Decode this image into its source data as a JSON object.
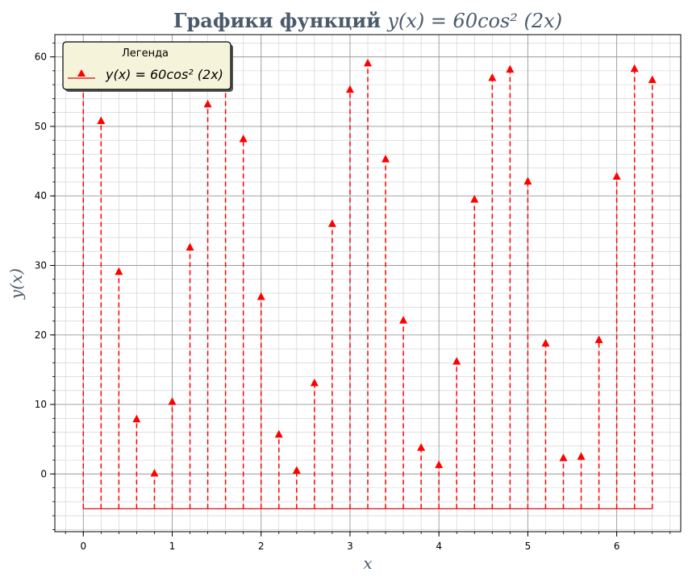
{
  "chart_data": {
    "type": "stem",
    "title_plain": "Графики функций ",
    "title_math": "y(x) = 60cos² (2x)",
    "xlabel": "x",
    "ylabel": "y(x)",
    "xlim": [
      -0.32,
      6.72
    ],
    "ylim": [
      -8.3,
      63.2
    ],
    "baseline": -5,
    "x_ticks": [
      0,
      1,
      2,
      3,
      4,
      5,
      6
    ],
    "y_ticks": [
      0,
      10,
      20,
      30,
      40,
      50,
      60
    ],
    "grid": true,
    "legend_position": "top-left",
    "legend_title": "Легенда",
    "series": [
      {
        "name": "y(x) = 60cos² (2x)",
        "color": "#ff0000",
        "marker": "triangle-up",
        "line_style": "dashed",
        "x": [
          0,
          0.2,
          0.4,
          0.6,
          0.8,
          1.0,
          1.2,
          1.4,
          1.6,
          1.8,
          2.0,
          2.2,
          2.4,
          2.6,
          2.8,
          3.0,
          3.2,
          3.4,
          3.6,
          3.8,
          4.0,
          4.2,
          4.4,
          4.6,
          4.8,
          5.0,
          5.2,
          5.4,
          5.6,
          5.8,
          6.0,
          6.2,
          6.4
        ],
        "y": [
          60.0,
          50.8,
          29.1,
          7.9,
          0.1,
          10.4,
          32.6,
          53.2,
          59.7,
          48.2,
          25.5,
          5.7,
          0.5,
          13.1,
          36.0,
          55.3,
          59.1,
          45.3,
          22.1,
          3.8,
          1.3,
          16.2,
          39.5,
          57.0,
          58.2,
          42.1,
          18.8,
          2.3,
          2.5,
          19.3,
          42.8,
          58.3,
          56.7
        ]
      }
    ]
  }
}
